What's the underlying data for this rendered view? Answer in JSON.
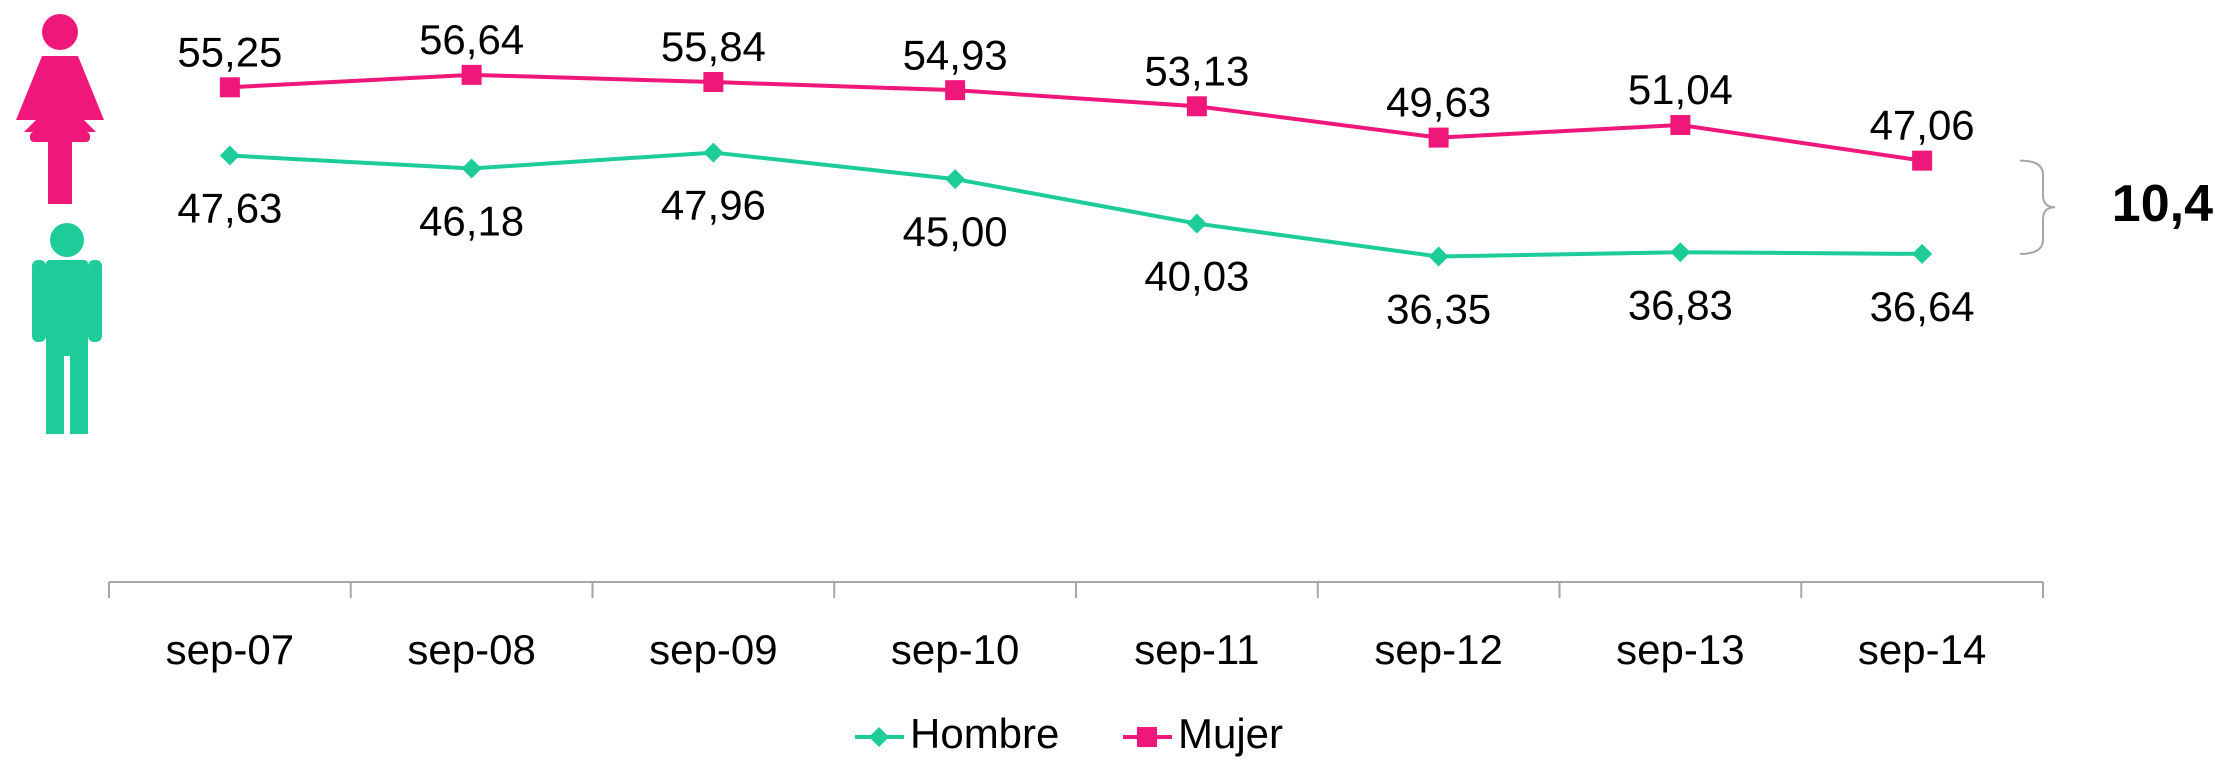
{
  "chart_data": {
    "type": "line",
    "categories": [
      "sep-07",
      "sep-08",
      "sep-09",
      "sep-10",
      "sep-11",
      "sep-12",
      "sep-13",
      "sep-14"
    ],
    "series": [
      {
        "name": "Hombre",
        "color": "#1ecc9a",
        "marker": "diamond",
        "values": [
          47.63,
          46.18,
          47.96,
          45.0,
          40.03,
          36.35,
          36.83,
          36.64
        ],
        "value_labels": [
          "47,63",
          "46,18",
          "47,96",
          "45,00",
          "40,03",
          "36,35",
          "36,83",
          "36,64"
        ]
      },
      {
        "name": "Mujer",
        "color": "#f0177a",
        "marker": "square",
        "values": [
          55.25,
          56.64,
          55.84,
          54.93,
          53.13,
          49.63,
          51.04,
          47.06
        ],
        "value_labels": [
          "55,25",
          "56,64",
          "55,84",
          "54,93",
          "53,13",
          "49,63",
          "51,04",
          "47,06"
        ]
      }
    ],
    "ylim": [
      0,
      65
    ],
    "annotation": "10,4",
    "legend": "bottom"
  }
}
